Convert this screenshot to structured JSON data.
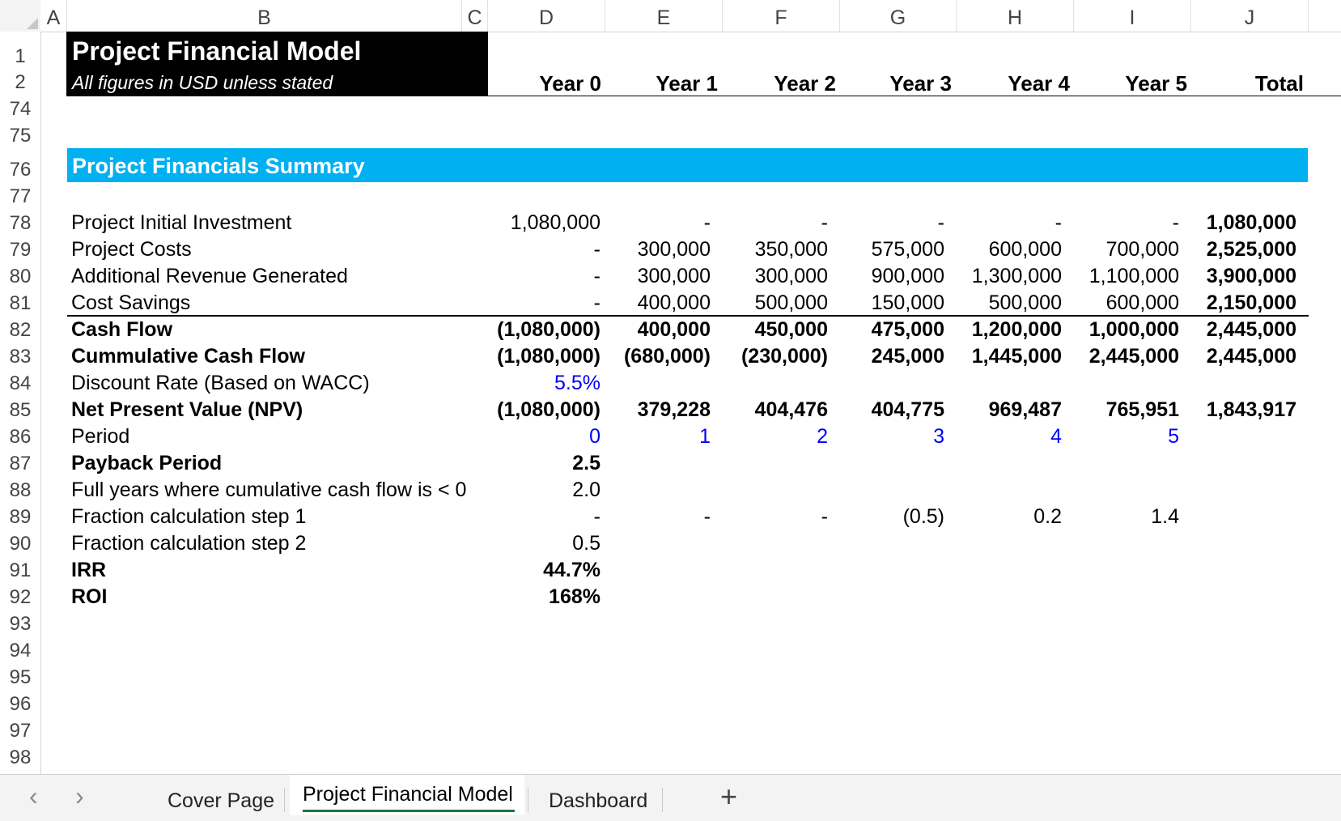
{
  "columns": [
    "A",
    "B",
    "C",
    "D",
    "E",
    "F",
    "G",
    "H",
    "I",
    "J"
  ],
  "rows": [
    "1",
    "2",
    "74",
    "75",
    "76",
    "77",
    "78",
    "79",
    "80",
    "81",
    "82",
    "83",
    "84",
    "85",
    "86",
    "87",
    "88",
    "89",
    "90",
    "91",
    "92",
    "93",
    "94",
    "95",
    "96",
    "97",
    "98"
  ],
  "title": {
    "main": "Project Financial Model",
    "subtitle": "All figures in USD unless stated"
  },
  "year_headers": [
    "Year 0",
    "Year 1",
    "Year 2",
    "Year 3",
    "Year 4",
    "Year 5",
    "Total"
  ],
  "section_title": "Project Financials Summary",
  "table": [
    {
      "label": "Project Initial Investment",
      "bold": false,
      "values": [
        "1,080,000",
        "-",
        "-",
        "-",
        "-",
        "-",
        "1,080,000"
      ]
    },
    {
      "label": "Project Costs",
      "bold": false,
      "values": [
        "-",
        "300,000",
        "350,000",
        "575,000",
        "600,000",
        "700,000",
        "2,525,000"
      ]
    },
    {
      "label": "Additional Revenue Generated",
      "bold": false,
      "values": [
        "-",
        "300,000",
        "300,000",
        "900,000",
        "1,300,000",
        "1,100,000",
        "3,900,000"
      ]
    },
    {
      "label": "Cost Savings",
      "bold": false,
      "values": [
        "-",
        "400,000",
        "500,000",
        "150,000",
        "500,000",
        "600,000",
        "2,150,000"
      ]
    },
    {
      "label": "Cash Flow",
      "bold": true,
      "values": [
        "(1,080,000)",
        "400,000",
        "450,000",
        "475,000",
        "1,200,000",
        "1,000,000",
        "2,445,000"
      ]
    },
    {
      "label": "Cummulative Cash Flow",
      "bold": true,
      "values": [
        "(1,080,000)",
        "(680,000)",
        "(230,000)",
        "245,000",
        "1,445,000",
        "2,445,000",
        "2,445,000"
      ]
    },
    {
      "label": "Discount Rate (Based on WACC)",
      "bold": false,
      "values": [
        "5.5%",
        "",
        "",
        "",
        "",
        "",
        ""
      ]
    },
    {
      "label": "Net Present Value (NPV)",
      "bold": true,
      "values": [
        "(1,080,000)",
        "379,228",
        "404,476",
        "404,775",
        "969,487",
        "765,951",
        "1,843,917"
      ]
    },
    {
      "label": "Period",
      "bold": false,
      "values": [
        "0",
        "1",
        "2",
        "3",
        "4",
        "5",
        ""
      ]
    },
    {
      "label": "Payback Period",
      "bold": true,
      "values": [
        "2.5",
        "",
        "",
        "",
        "",
        "",
        ""
      ]
    },
    {
      "label": "Full years where cumulative cash flow is < 0",
      "bold": false,
      "values": [
        "2.0",
        "",
        "",
        "",
        "",
        "",
        ""
      ]
    },
    {
      "label": "Fraction calculation step 1",
      "bold": false,
      "values": [
        "-",
        "-",
        "-",
        "(0.5)",
        "0.2",
        "1.4",
        ""
      ]
    },
    {
      "label": "Fraction calculation step 2",
      "bold": false,
      "values": [
        "0.5",
        "",
        "",
        "",
        "",
        "",
        ""
      ]
    },
    {
      "label": "IRR",
      "bold": true,
      "values": [
        "44.7%",
        "",
        "",
        "",
        "",
        "",
        ""
      ]
    },
    {
      "label": "ROI",
      "bold": true,
      "values": [
        "168%",
        "",
        "",
        "",
        "",
        "",
        ""
      ]
    }
  ],
  "colors": {
    "section_bar": "#00b0f0",
    "input_blue": "#0000ff",
    "active_tab_underline": "#217346"
  },
  "sheet_tabs": [
    "Cover Page",
    "Project Financial Model",
    "Dashboard"
  ],
  "active_tab": "Project Financial Model",
  "icons": {
    "prev": "chevron-left-icon",
    "next": "chevron-right-icon",
    "add": "plus-icon"
  }
}
